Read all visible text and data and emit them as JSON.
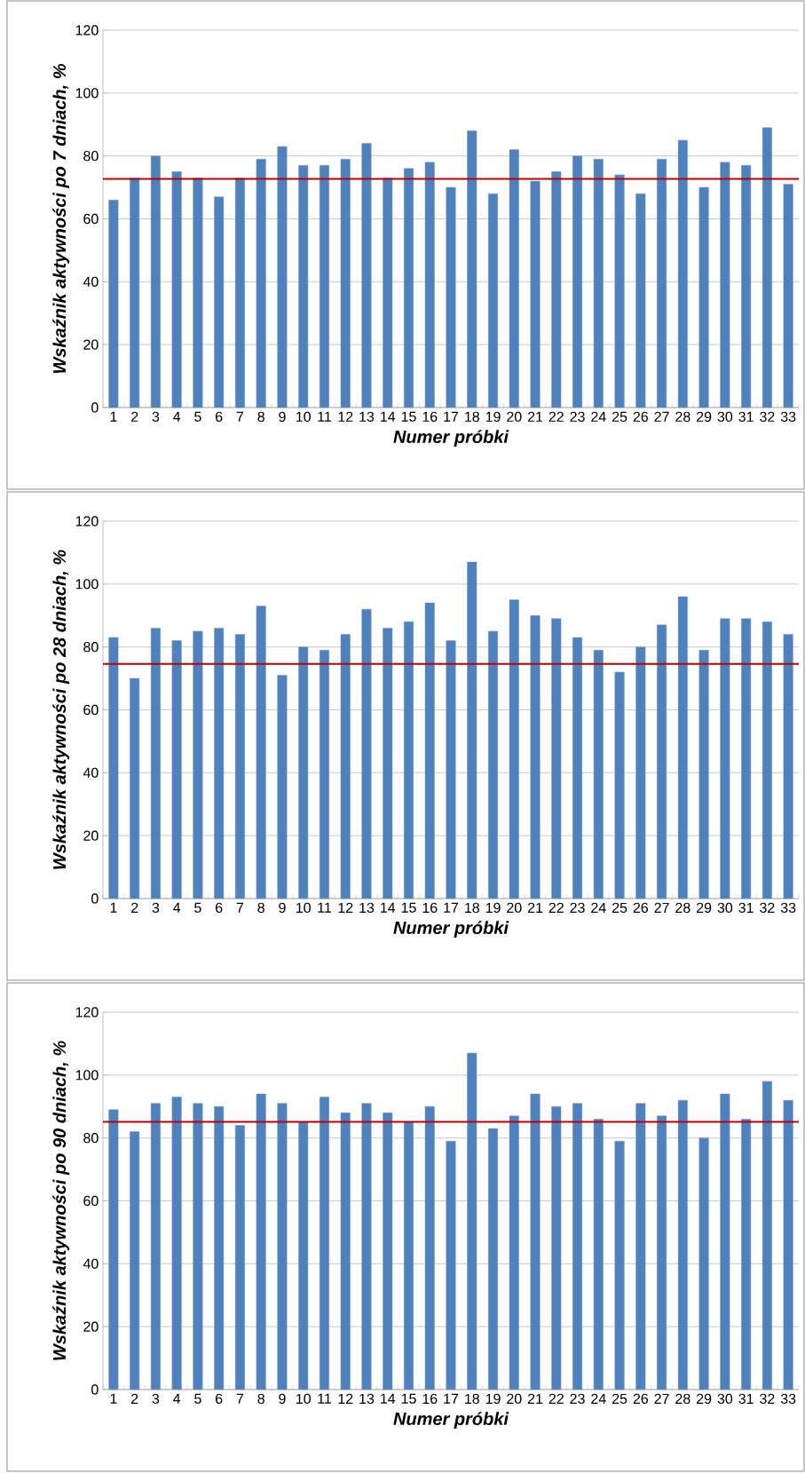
{
  "chart_data": [
    {
      "type": "bar",
      "xlabel": "Numer próbki",
      "ylabel": "Wskaźnik aktywności po 7 dniach, %",
      "categories": [
        "1",
        "2",
        "3",
        "4",
        "5",
        "6",
        "7",
        "8",
        "9",
        "10",
        "11",
        "12",
        "13",
        "14",
        "15",
        "16",
        "17",
        "18",
        "19",
        "20",
        "21",
        "22",
        "23",
        "24",
        "25",
        "26",
        "27",
        "28",
        "29",
        "30",
        "31",
        "32",
        "33"
      ],
      "values": [
        66,
        73,
        80,
        75,
        73,
        67,
        73,
        79,
        83,
        77,
        77,
        79,
        84,
        73,
        76,
        78,
        70,
        88,
        68,
        82,
        72,
        75,
        80,
        79,
        74,
        68,
        79,
        85,
        70,
        78,
        77,
        89,
        71
      ],
      "color": "#4f81bd",
      "ylim": [
        0,
        120
      ],
      "yticks": [
        0,
        20,
        40,
        60,
        80,
        100,
        120
      ],
      "grid": "y",
      "ref_lines": [
        {
          "axis": "y",
          "value": 72.7,
          "color": "#c00000"
        }
      ]
    },
    {
      "type": "bar",
      "xlabel": "Numer próbki",
      "ylabel": "Wskaźnik aktywności po 28 dniach, %",
      "categories": [
        "1",
        "2",
        "3",
        "4",
        "5",
        "6",
        "7",
        "8",
        "9",
        "10",
        "11",
        "12",
        "13",
        "14",
        "15",
        "16",
        "17",
        "18",
        "19",
        "20",
        "21",
        "22",
        "23",
        "24",
        "25",
        "26",
        "27",
        "28",
        "29",
        "30",
        "31",
        "32",
        "33"
      ],
      "values": [
        83,
        70,
        86,
        82,
        85,
        86,
        84,
        93,
        71,
        80,
        79,
        84,
        92,
        86,
        88,
        94,
        82,
        107,
        85,
        95,
        90,
        89,
        83,
        79,
        72,
        80,
        87,
        96,
        79,
        89,
        89,
        88,
        84
      ],
      "color": "#4f81bd",
      "ylim": [
        0,
        120
      ],
      "yticks": [
        0,
        20,
        40,
        60,
        80,
        100,
        120
      ],
      "grid": "y",
      "ref_lines": [
        {
          "axis": "y",
          "value": 74.6,
          "color": "#c00000"
        }
      ]
    },
    {
      "type": "bar",
      "xlabel": "Numer próbki",
      "ylabel": "Wskaźnik aktywności po 90 dniach, %",
      "categories": [
        "1",
        "2",
        "3",
        "4",
        "5",
        "6",
        "7",
        "8",
        "9",
        "10",
        "11",
        "12",
        "13",
        "14",
        "15",
        "16",
        "17",
        "18",
        "19",
        "20",
        "21",
        "22",
        "23",
        "24",
        "25",
        "26",
        "27",
        "28",
        "29",
        "30",
        "31",
        "32",
        "33"
      ],
      "values": [
        89,
        82,
        91,
        93,
        91,
        90,
        84,
        94,
        91,
        85,
        93,
        88,
        91,
        88,
        85,
        90,
        79,
        107,
        83,
        87,
        94,
        90,
        91,
        86,
        79,
        91,
        87,
        92,
        80,
        94,
        86,
        98,
        92
      ],
      "color": "#4f81bd",
      "ylim": [
        0,
        120
      ],
      "yticks": [
        0,
        20,
        40,
        60,
        80,
        100,
        120
      ],
      "grid": "y",
      "ref_lines": [
        {
          "axis": "y",
          "value": 85.1,
          "color": "#c00000"
        }
      ]
    }
  ]
}
